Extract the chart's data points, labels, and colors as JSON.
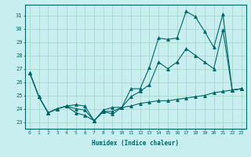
{
  "xlabel": "Humidex (Indice chaleur)",
  "ylabel": "",
  "xlim": [
    -0.5,
    23.5
  ],
  "ylim": [
    22.5,
    31.8
  ],
  "bg_color": "#c8eef0",
  "grid_color": "#a8d8cc",
  "line_color": "#006666",
  "x_ticks": [
    0,
    1,
    2,
    3,
    4,
    5,
    6,
    7,
    8,
    9,
    10,
    11,
    12,
    13,
    14,
    15,
    16,
    17,
    18,
    19,
    20,
    21,
    22,
    23
  ],
  "y_ticks": [
    23,
    24,
    25,
    26,
    27,
    28,
    29,
    30,
    31
  ],
  "series": {
    "max": [
      26.7,
      24.9,
      23.7,
      24.0,
      24.2,
      23.7,
      23.5,
      23.1,
      23.8,
      23.6,
      24.1,
      25.5,
      25.5,
      27.1,
      29.3,
      29.2,
      29.3,
      31.3,
      30.9,
      29.8,
      28.6,
      31.1,
      25.4,
      25.5
    ],
    "min": [
      26.7,
      24.9,
      23.7,
      24.0,
      24.2,
      24.3,
      24.2,
      23.1,
      23.9,
      24.1,
      24.1,
      24.2,
      24.4,
      24.5,
      24.6,
      24.6,
      24.7,
      24.8,
      24.9,
      25.0,
      25.2,
      25.3,
      25.4,
      25.5
    ],
    "mean": [
      26.7,
      24.9,
      23.7,
      24.0,
      24.2,
      24.0,
      23.9,
      23.1,
      23.8,
      23.8,
      24.1,
      24.9,
      25.3,
      25.8,
      27.5,
      27.0,
      27.5,
      28.5,
      28.0,
      27.5,
      27.0,
      29.9,
      25.4,
      25.5
    ]
  }
}
